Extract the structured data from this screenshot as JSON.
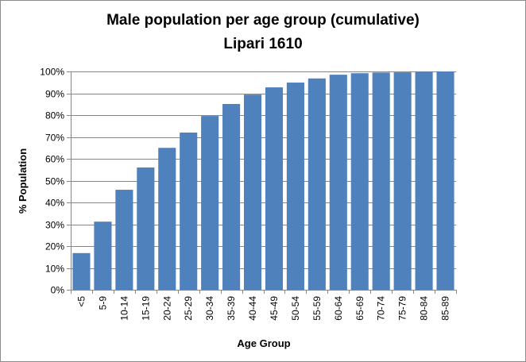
{
  "chart_data": {
    "type": "bar",
    "title": "Male population per age group (cumulative)",
    "subtitle": "Lipari 1610",
    "xlabel": "Age Group",
    "ylabel": "% Population",
    "ylim": [
      0,
      100
    ],
    "y_ticks": [
      "0%",
      "10%",
      "20%",
      "30%",
      "40%",
      "50%",
      "60%",
      "70%",
      "80%",
      "90%",
      "100%"
    ],
    "grid": true,
    "legend": "none",
    "bar_color": "#4f81bd",
    "categories": [
      "<5",
      "5-9",
      "10-14",
      "15-19",
      "20-24",
      "25-29",
      "30-34",
      "35-39",
      "40-44",
      "45-49",
      "50-54",
      "55-59",
      "60-64",
      "65-69",
      "70-74",
      "75-79",
      "80-84",
      "85-89"
    ],
    "values": [
      16.8,
      31.2,
      45.8,
      56.0,
      65.0,
      72.0,
      79.6,
      85.1,
      89.4,
      92.7,
      94.9,
      96.8,
      98.5,
      99.2,
      99.5,
      99.6,
      99.9,
      100.0
    ]
  }
}
